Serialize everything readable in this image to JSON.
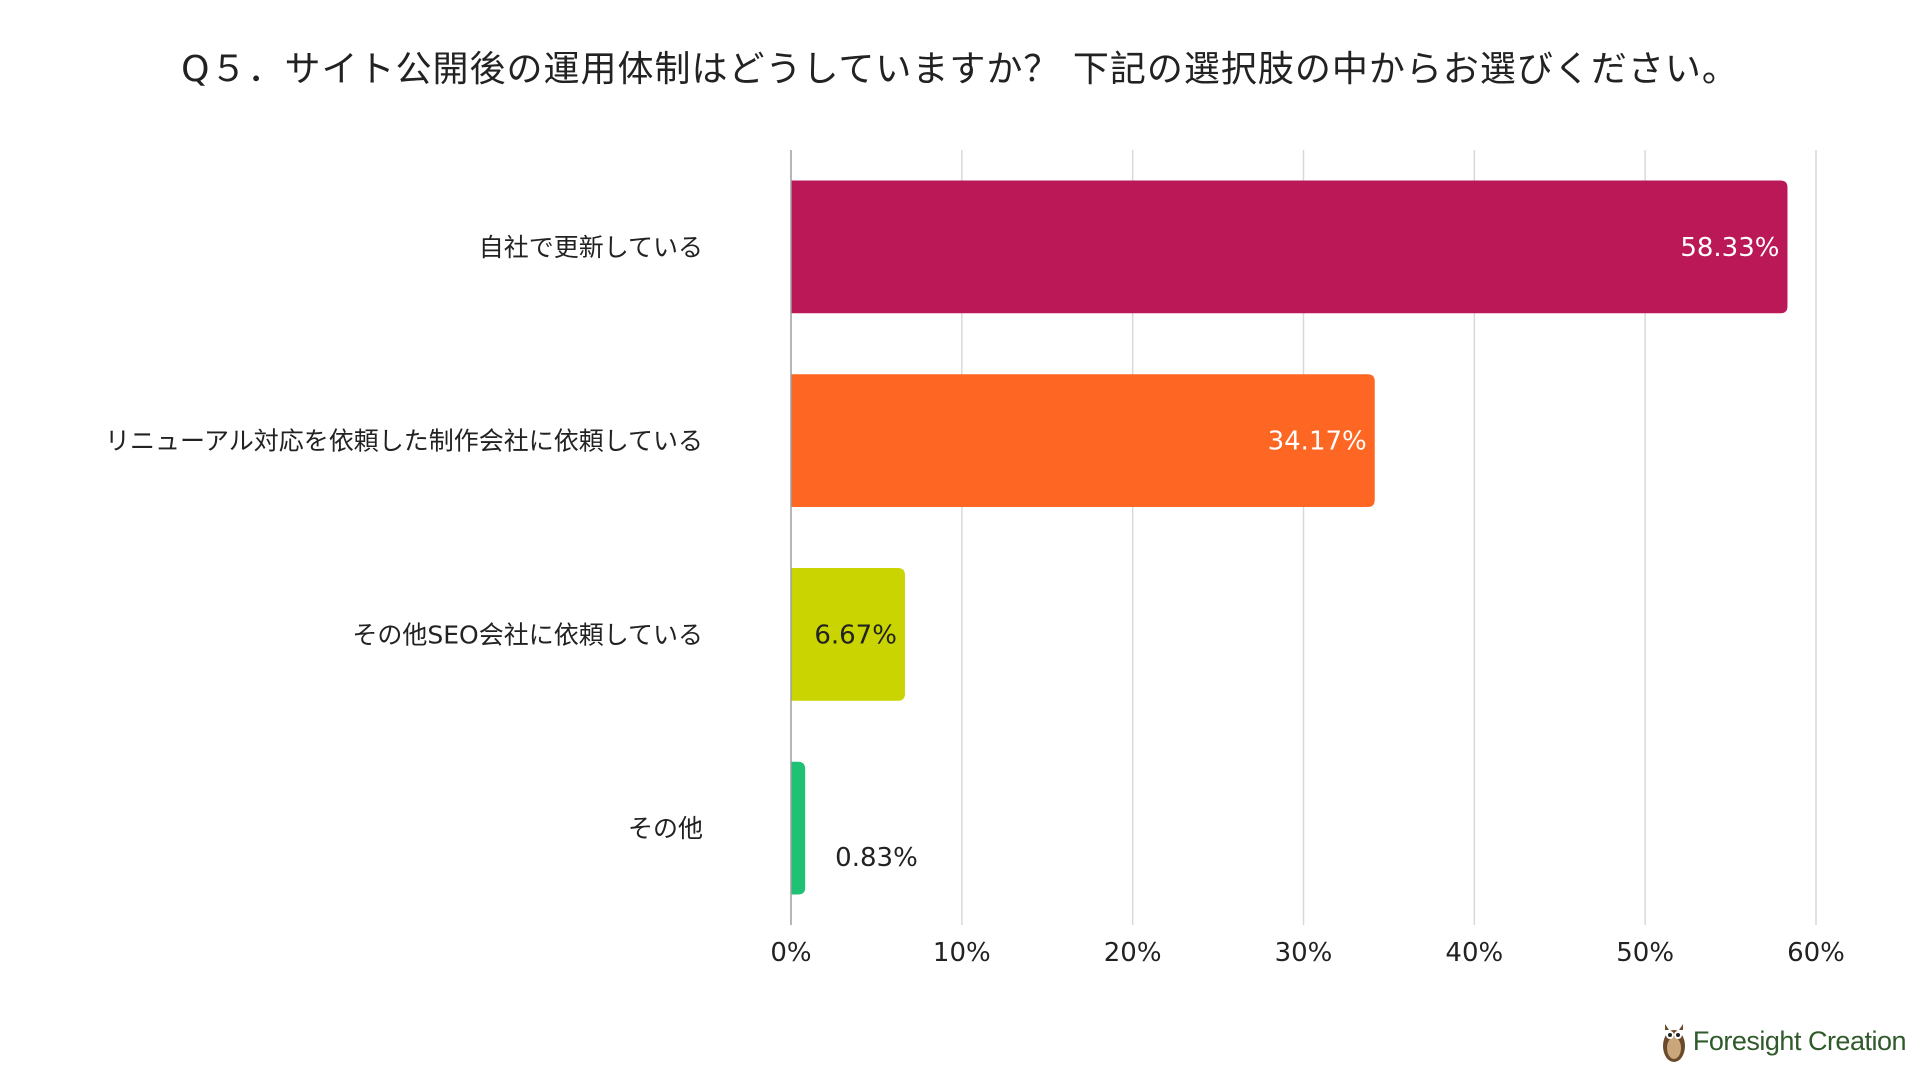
{
  "chart_data": {
    "type": "bar",
    "orientation": "horizontal",
    "title": "Q５．サイト公開後の運用体制はどうしていますか？ 下記の選択肢の中からお選びください。",
    "categories": [
      "自社で更新している",
      "リニューアル対応を依頼した制作会社に依頼している",
      "その他SEO会社に依頼している",
      "その他"
    ],
    "values": [
      58.33,
      34.17,
      6.67,
      0.83
    ],
    "value_labels": [
      "58.33%",
      "34.17%",
      "6.67%",
      "0.83%"
    ],
    "colors": [
      "#BA1856",
      "#FE6723",
      "#C9D400",
      "#1FC274"
    ],
    "label_colors": [
      "#ffffff",
      "#ffffff",
      "#222222",
      "#222222"
    ],
    "xlim": [
      0,
      60
    ],
    "ticks": [
      0,
      10,
      20,
      30,
      40,
      50,
      60
    ],
    "tick_labels": [
      "0%",
      "10%",
      "20%",
      "30%",
      "40%",
      "50%",
      "60%"
    ],
    "grid": true,
    "xlabel": "",
    "ylabel": ""
  },
  "logo": {
    "text": "Foresight Creation"
  }
}
